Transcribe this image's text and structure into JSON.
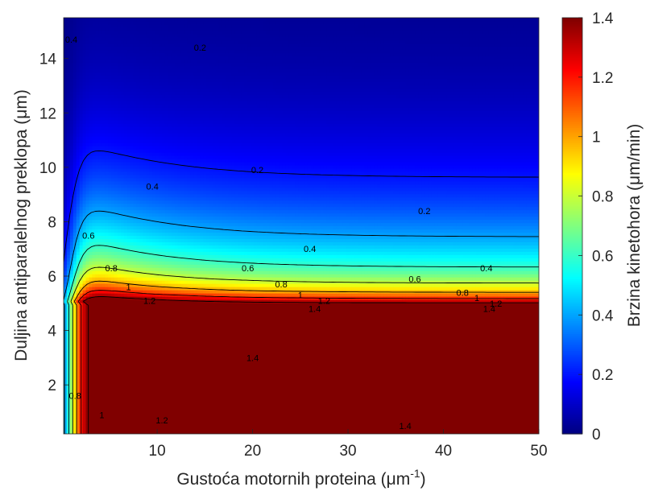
{
  "chart_data": {
    "type": "heatmap",
    "subtype": "filled-contour",
    "colormap": "jet",
    "xlabel": "Gustoća motornih proteina (μm",
    "xlabel_superscript": "-1",
    "xlabel_suffix": ")",
    "ylabel": "Duljina antiparalelnog preklopa (μm)",
    "colorbar_label": "Brzina kinetohora (μm/min)",
    "xlim": [
      0.2,
      50
    ],
    "ylim": [
      0.2,
      15.5
    ],
    "clim": [
      0,
      1.4
    ],
    "x_ticks": [
      10,
      20,
      30,
      40,
      50
    ],
    "y_ticks": [
      2,
      4,
      6,
      8,
      10,
      12,
      14
    ],
    "colorbar_ticks": [
      0,
      0.2,
      0.4,
      0.6,
      0.8,
      1,
      1.2,
      1.4
    ],
    "tick_labels": {
      "x": [
        "10",
        "20",
        "30",
        "40",
        "50"
      ],
      "y": [
        "2",
        "4",
        "6",
        "8",
        "10",
        "12",
        "14"
      ],
      "colorbar": [
        "0",
        "0.2",
        "0.4",
        "0.6",
        "0.8",
        "1",
        "1.2",
        "1.4"
      ]
    },
    "contour_levels": [
      0.2,
      0.4,
      0.6,
      0.8,
      1,
      1.2,
      1.4
    ],
    "contour_labels": [
      {
        "text": "0.2",
        "x": 14.5,
        "y": 14.4
      },
      {
        "text": "0.2",
        "x": 20.5,
        "y": 9.9
      },
      {
        "text": "0.2",
        "x": 38,
        "y": 8.4
      },
      {
        "text": "0.4",
        "x": 1.0,
        "y": 14.7
      },
      {
        "text": "0.4",
        "x": 9.5,
        "y": 9.3
      },
      {
        "text": "0.4",
        "x": 26,
        "y": 7.0
      },
      {
        "text": "0.4",
        "x": 44.5,
        "y": 6.3
      },
      {
        "text": "0.6",
        "x": 2.8,
        "y": 7.5
      },
      {
        "text": "0.6",
        "x": 19.5,
        "y": 6.3
      },
      {
        "text": "0.6",
        "x": 37,
        "y": 5.9
      },
      {
        "text": "0.8",
        "x": 5.2,
        "y": 6.3
      },
      {
        "text": "0.8",
        "x": 23,
        "y": 5.7
      },
      {
        "text": "0.8",
        "x": 42,
        "y": 5.4
      },
      {
        "text": "0.8",
        "x": 1.4,
        "y": 1.6
      },
      {
        "text": "1",
        "x": 7.0,
        "y": 5.6
      },
      {
        "text": "1",
        "x": 25,
        "y": 5.3
      },
      {
        "text": "1",
        "x": 43.5,
        "y": 5.2
      },
      {
        "text": "1",
        "x": 4.2,
        "y": 0.9
      },
      {
        "text": "1.2",
        "x": 9.2,
        "y": 5.1
      },
      {
        "text": "1.2",
        "x": 27.5,
        "y": 5.1
      },
      {
        "text": "1.2",
        "x": 45.5,
        "y": 5.0
      },
      {
        "text": "1.2",
        "x": 10.5,
        "y": 0.7
      },
      {
        "text": "1.4",
        "x": 26.5,
        "y": 4.8
      },
      {
        "text": "1.4",
        "x": 44.8,
        "y": 4.8
      },
      {
        "text": "1.4",
        "x": 20,
        "y": 3.0
      },
      {
        "text": "1.4",
        "x": 36,
        "y": 0.5
      }
    ],
    "grid": false,
    "legend": "colorbar-right"
  }
}
